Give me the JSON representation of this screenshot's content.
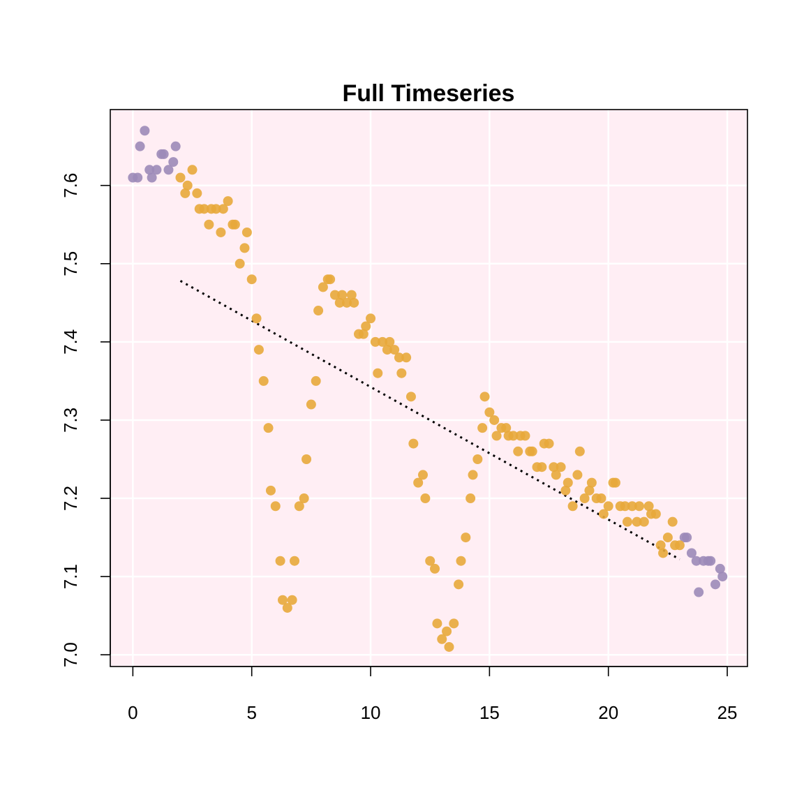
{
  "chart_data": {
    "type": "scatter",
    "title": "Full Timeseries",
    "xlabel": "",
    "ylabel": "",
    "xlim": [
      -0.95,
      25.85
    ],
    "ylim": [
      6.985,
      7.697
    ],
    "x_ticks": [
      0,
      5,
      10,
      15,
      20,
      25
    ],
    "y_ticks": [
      7.0,
      7.1,
      7.2,
      7.3,
      7.4,
      7.5,
      7.6
    ],
    "x_tick_labels": [
      "0",
      "5",
      "10",
      "15",
      "20",
      "25"
    ],
    "y_tick_labels": [
      "7.0",
      "7.1",
      "7.2",
      "7.3",
      "7.4",
      "7.5",
      "7.6"
    ],
    "grid": true,
    "colors": {
      "background": "#ffeef4",
      "grid": "#ffffff",
      "highlight_points": "#e8a93b",
      "other_points": "#9c8ab8",
      "trend_line": "#000000"
    },
    "series": [
      {
        "role": "outside-window",
        "x": [
          0,
          0.2,
          0.3,
          0.5,
          0.7,
          0.8,
          1.0,
          1.2,
          1.3,
          1.5,
          1.7,
          1.8,
          23.2,
          23.3,
          23.5,
          23.7,
          23.8,
          24.0,
          24.2,
          24.3,
          24.5,
          24.7,
          24.8
        ],
        "y": [
          7.61,
          7.61,
          7.65,
          7.67,
          7.62,
          7.61,
          7.62,
          7.64,
          7.64,
          7.62,
          7.63,
          7.65,
          7.15,
          7.15,
          7.13,
          7.12,
          7.08,
          7.12,
          7.12,
          7.12,
          7.09,
          7.11,
          7.1
        ]
      },
      {
        "role": "inside-window",
        "x": [
          2.0,
          2.2,
          2.3,
          2.5,
          2.7,
          2.8,
          3.0,
          3.2,
          3.3,
          3.5,
          3.7,
          3.8,
          4.0,
          4.2,
          4.3,
          4.5,
          4.7,
          4.8,
          5.0,
          5.2,
          5.3,
          5.5,
          5.7,
          5.8,
          6.0,
          6.2,
          6.3,
          6.5,
          6.7,
          6.8,
          7.0,
          7.2,
          7.3,
          7.5,
          7.7,
          7.8,
          8.0,
          8.2,
          8.3,
          8.5,
          8.7,
          8.8,
          9.0,
          9.2,
          9.3,
          9.5,
          9.7,
          9.8,
          10.0,
          10.2,
          10.3,
          10.5,
          10.7,
          10.8,
          11.0,
          11.2,
          11.3,
          11.5,
          11.7,
          11.8,
          12.0,
          12.2,
          12.3,
          12.5,
          12.7,
          12.8,
          13.0,
          13.2,
          13.3,
          13.5,
          13.7,
          13.8,
          14.0,
          14.2,
          14.3,
          14.5,
          14.7,
          14.8,
          15.0,
          15.2,
          15.3,
          15.5,
          15.7,
          15.8,
          16.0,
          16.2,
          16.3,
          16.5,
          16.7,
          16.8,
          17.0,
          17.2,
          17.3,
          17.5,
          17.7,
          17.8,
          18.0,
          18.2,
          18.3,
          18.5,
          18.7,
          18.8,
          19.0,
          19.2,
          19.3,
          19.5,
          19.7,
          19.8,
          20.0,
          20.2,
          20.3,
          20.5,
          20.7,
          20.8,
          21.0,
          21.2,
          21.3,
          21.5,
          21.7,
          21.8,
          22.0,
          22.2,
          22.3,
          22.5,
          22.7,
          22.8,
          23.0
        ],
        "y": [
          7.61,
          7.59,
          7.6,
          7.62,
          7.59,
          7.57,
          7.57,
          7.55,
          7.57,
          7.57,
          7.54,
          7.57,
          7.58,
          7.55,
          7.55,
          7.5,
          7.52,
          7.54,
          7.48,
          7.43,
          7.39,
          7.35,
          7.29,
          7.21,
          7.19,
          7.12,
          7.07,
          7.06,
          7.07,
          7.12,
          7.19,
          7.2,
          7.25,
          7.32,
          7.35,
          7.44,
          7.47,
          7.48,
          7.48,
          7.46,
          7.45,
          7.46,
          7.45,
          7.46,
          7.45,
          7.41,
          7.41,
          7.42,
          7.43,
          7.4,
          7.36,
          7.4,
          7.39,
          7.4,
          7.39,
          7.38,
          7.36,
          7.38,
          7.33,
          7.27,
          7.22,
          7.23,
          7.2,
          7.12,
          7.11,
          7.04,
          7.02,
          7.03,
          7.01,
          7.04,
          7.09,
          7.12,
          7.15,
          7.2,
          7.23,
          7.25,
          7.29,
          7.33,
          7.31,
          7.3,
          7.28,
          7.29,
          7.29,
          7.28,
          7.28,
          7.26,
          7.28,
          7.28,
          7.26,
          7.26,
          7.24,
          7.24,
          7.27,
          7.27,
          7.24,
          7.23,
          7.24,
          7.21,
          7.22,
          7.19,
          7.23,
          7.26,
          7.2,
          7.21,
          7.22,
          7.2,
          7.2,
          7.18,
          7.19,
          7.22,
          7.22,
          7.19,
          7.19,
          7.17,
          7.19,
          7.17,
          7.19,
          7.17,
          7.19,
          7.18,
          7.18,
          7.14,
          7.13,
          7.15,
          7.17,
          7.14,
          7.14
        ]
      }
    ],
    "trend_line": {
      "style": "dotted",
      "x": [
        2.0,
        23.0
      ],
      "y": [
        7.478,
        7.122
      ]
    }
  }
}
